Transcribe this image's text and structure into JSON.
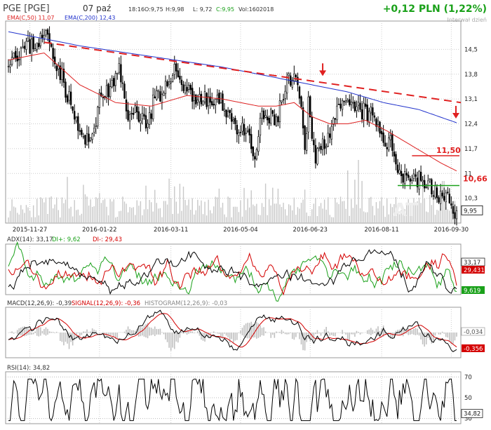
{
  "header": {
    "ticker": "PGE [PGE]",
    "date": "07 paź",
    "time": "18:16",
    "open": "O:9,75",
    "high": "H:9,98",
    "low": "L: 9,72",
    "close": "C:9,95",
    "volume": "Vol:1602018",
    "change": "+0,12 PLN (1,22%)",
    "interval": "Interwał dzień"
  },
  "colors": {
    "up": "#1aa11a",
    "down": "#d40000",
    "ema50": "#dd2222",
    "ema200": "#2233cc",
    "candle": "#000000",
    "volume": "#c8c8c8"
  },
  "chart_data": [
    {
      "type": "candlestick",
      "panel": "price",
      "legend": [
        "EMA(C,50) 11,07",
        "EMA(C,200) 12,43"
      ],
      "x_ticks": [
        "2015-11-27",
        "2016-01-22",
        "2016-03-11",
        "2016-05-04",
        "2016-06-23",
        "2016-08-11",
        "2016-09-30"
      ],
      "y_ticks": [
        "14,5",
        "13,8",
        "13,1",
        "12,4",
        "11,7",
        "11",
        "10,3"
      ],
      "ylim": [
        9.6,
        15.3
      ],
      "last_value": "9,95",
      "annotations": {
        "resistance_label": "11,50",
        "resistance": 11.5,
        "support_label": "10,66",
        "support": 10.66
      },
      "close_anchors": [
        [
          0,
          14.3
        ],
        [
          12,
          14.6
        ],
        [
          22,
          14.9
        ],
        [
          32,
          13.4
        ],
        [
          40,
          12.1
        ],
        [
          45,
          11.8
        ],
        [
          52,
          13.2
        ],
        [
          58,
          13.4
        ],
        [
          62,
          13.9
        ],
        [
          68,
          12.5
        ],
        [
          72,
          12.8
        ],
        [
          78,
          12.4
        ],
        [
          82,
          13.2
        ],
        [
          86,
          13.0
        ],
        [
          92,
          14.0
        ],
        [
          98,
          13.5
        ],
        [
          106,
          13.1
        ],
        [
          114,
          13.0
        ],
        [
          120,
          13.0
        ],
        [
          128,
          12.3
        ],
        [
          134,
          12.0
        ],
        [
          138,
          11.4
        ],
        [
          142,
          12.6
        ],
        [
          150,
          12.5
        ],
        [
          156,
          13.5
        ],
        [
          160,
          13.7
        ],
        [
          164,
          12.8
        ],
        [
          166,
          11.5
        ],
        [
          168,
          13.0
        ],
        [
          172,
          11.5
        ],
        [
          176,
          11.8
        ],
        [
          182,
          12.5
        ],
        [
          188,
          12.9
        ],
        [
          196,
          12.8
        ],
        [
          204,
          12.6
        ],
        [
          210,
          12.0
        ],
        [
          214,
          11.8
        ],
        [
          220,
          11.0
        ],
        [
          226,
          10.9
        ],
        [
          232,
          10.8
        ],
        [
          238,
          10.5
        ],
        [
          244,
          10.3
        ],
        [
          248,
          10.1
        ],
        [
          251,
          9.95
        ]
      ],
      "ema50_anchors": [
        [
          0,
          14.2
        ],
        [
          20,
          14.4
        ],
        [
          40,
          13.5
        ],
        [
          60,
          13.0
        ],
        [
          80,
          12.9
        ],
        [
          100,
          13.2
        ],
        [
          120,
          13.1
        ],
        [
          140,
          12.9
        ],
        [
          150,
          12.9
        ],
        [
          160,
          13.0
        ],
        [
          170,
          12.6
        ],
        [
          180,
          12.4
        ],
        [
          190,
          12.4
        ],
        [
          200,
          12.5
        ],
        [
          212,
          12.2
        ],
        [
          222,
          11.9
        ],
        [
          232,
          11.6
        ],
        [
          242,
          11.3
        ],
        [
          251,
          11.07
        ]
      ],
      "ema200_anchors": [
        [
          0,
          15.0
        ],
        [
          40,
          14.6
        ],
        [
          80,
          14.3
        ],
        [
          120,
          14.0
        ],
        [
          160,
          13.6
        ],
        [
          190,
          13.3
        ],
        [
          210,
          13.0
        ],
        [
          230,
          12.8
        ],
        [
          251,
          12.43
        ]
      ]
    },
    {
      "type": "line",
      "panel": "adx",
      "legend": [
        "ADX(14): 33,17",
        "DI+: 9,62",
        "DI-: 29,43"
      ],
      "last_values": [
        "33,17",
        "29,431",
        "9,619"
      ]
    },
    {
      "type": "line",
      "panel": "macd",
      "legend": [
        "MACD(12,26,9): -0,39",
        "SIGNAL(12,26,9): -0,36",
        "HISTOGRAM(12,26,9): -0,03"
      ],
      "last_values": [
        "-0,034",
        "-0,356"
      ]
    },
    {
      "type": "line",
      "panel": "rsi",
      "legend": [
        "RSI(14): 34,82"
      ],
      "y_ticks": [
        "70",
        "50",
        "30"
      ],
      "last_value": "34,82"
    }
  ]
}
